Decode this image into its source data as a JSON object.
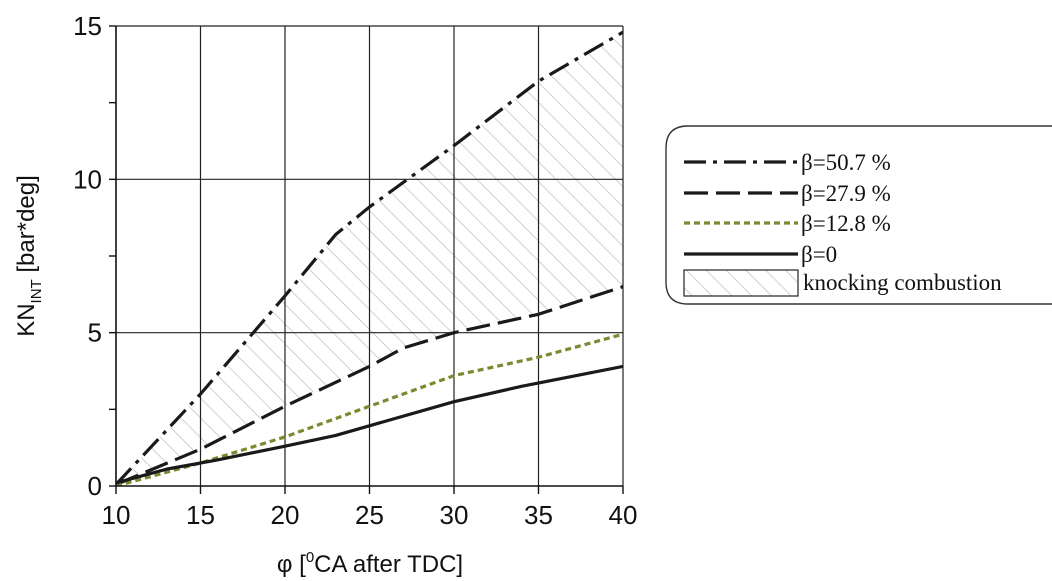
{
  "chart_data": {
    "type": "line",
    "xlabel": {
      "main": "φ [",
      "sup": "0",
      "rest": "CA after TDC]"
    },
    "ylabel": {
      "main": "KN",
      "sub": "INT",
      "rest": " [bar*deg]"
    },
    "xlim": [
      10,
      40
    ],
    "ylim": [
      0,
      15
    ],
    "xticks": [
      10,
      15,
      20,
      25,
      30,
      35,
      40
    ],
    "yticks": [
      0,
      5,
      10,
      15
    ],
    "grid": true,
    "legend_position": "right",
    "series": [
      {
        "name": "β=50.7 %",
        "style": "dashdot",
        "color": "#1a1a1a",
        "points": [
          [
            10,
            0.05
          ],
          [
            15,
            3.0
          ],
          [
            20,
            6.2
          ],
          [
            23,
            8.2
          ],
          [
            25,
            9.1
          ],
          [
            30,
            11.1
          ],
          [
            35,
            13.2
          ],
          [
            40,
            14.8
          ]
        ]
      },
      {
        "name": "β=27.9 %",
        "style": "dashed",
        "color": "#1a1a1a",
        "points": [
          [
            10,
            0.05
          ],
          [
            15,
            1.2
          ],
          [
            20,
            2.6
          ],
          [
            25,
            3.9
          ],
          [
            27,
            4.5
          ],
          [
            30,
            5.0
          ],
          [
            35,
            5.6
          ],
          [
            40,
            6.5
          ]
        ]
      },
      {
        "name": "β=12.8 %",
        "style": "dotted",
        "color": "#7a8a2e",
        "points": [
          [
            10,
            0.0
          ],
          [
            15,
            0.75
          ],
          [
            20,
            1.6
          ],
          [
            25,
            2.6
          ],
          [
            30,
            3.6
          ],
          [
            35,
            4.2
          ],
          [
            40,
            4.95
          ]
        ]
      },
      {
        "name": "β=0",
        "style": "solid",
        "color": "#1a1a1a",
        "points": [
          [
            10,
            0.1
          ],
          [
            13,
            0.55
          ],
          [
            16,
            0.85
          ],
          [
            20,
            1.3
          ],
          [
            23,
            1.65
          ],
          [
            30,
            2.75
          ],
          [
            34,
            3.25
          ],
          [
            40,
            3.9
          ]
        ]
      }
    ],
    "hatched_region": {
      "name": "knocking combustion",
      "upper_series": "β=50.7 %",
      "lower_series": "β=27.9 %"
    }
  }
}
